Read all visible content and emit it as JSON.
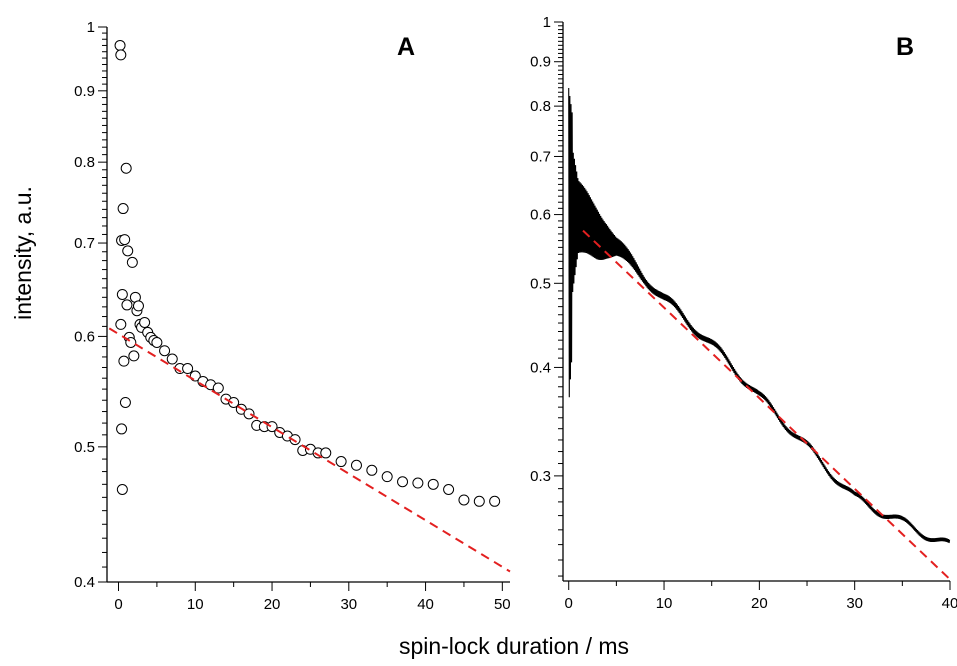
{
  "figure": {
    "xlabel": "spin-lock duration / ms",
    "ylabel": "intensity, a.u."
  },
  "chart_data": [
    {
      "panel": "A",
      "type": "scatter",
      "scale_y": "log",
      "xlim": [
        -1.5,
        51
      ],
      "ylim": [
        0.4,
        1.0
      ],
      "x_ticks": [
        0,
        10,
        20,
        30,
        40,
        50
      ],
      "y_ticks": [
        0.4,
        0.5,
        0.6,
        0.7,
        0.8,
        0.9,
        1
      ],
      "y_tick_labels": [
        "0.4",
        "0.5",
        "0.6",
        "0.7",
        "0.8",
        "0.9",
        "1"
      ],
      "grid": false,
      "series": [
        {
          "kind": "markers",
          "marker": "open-circle",
          "color": "#000000",
          "x": [
            0.2,
            0.3,
            0.3,
            0.4,
            0.4,
            0.5,
            0.5,
            0.6,
            0.7,
            0.8,
            0.9,
            1.0,
            1.1,
            1.2,
            1.4,
            1.6,
            1.8,
            2.0,
            2.2,
            2.4,
            2.6,
            2.8,
            3.0,
            3.4,
            3.8,
            4.2,
            4.6,
            5.0,
            6.0,
            7.0,
            8.0,
            9.0,
            10.0,
            11.0,
            12.0,
            13.0,
            14.0,
            15.0,
            16.0,
            17.0,
            18.0,
            19.0,
            20.0,
            21.0,
            22.0,
            23.0,
            24.0,
            25.0,
            26.0,
            27.0,
            29.0,
            31.0,
            33.0,
            35.0,
            37.0,
            39.0,
            41.0,
            43.0,
            45.0,
            47.0,
            49.0
          ],
          "y": [
            0.97,
            0.955,
            0.612,
            0.703,
            0.515,
            0.643,
            0.466,
            0.741,
            0.576,
            0.704,
            0.538,
            0.792,
            0.632,
            0.691,
            0.599,
            0.594,
            0.678,
            0.581,
            0.64,
            0.626,
            0.631,
            0.612,
            0.609,
            0.614,
            0.604,
            0.599,
            0.596,
            0.594,
            0.586,
            0.578,
            0.569,
            0.569,
            0.562,
            0.557,
            0.554,
            0.551,
            0.541,
            0.538,
            0.532,
            0.528,
            0.518,
            0.517,
            0.517,
            0.512,
            0.509,
            0.506,
            0.497,
            0.498,
            0.495,
            0.495,
            0.488,
            0.485,
            0.481,
            0.476,
            0.472,
            0.471,
            0.47,
            0.466,
            0.458,
            0.457,
            0.457
          ]
        },
        {
          "kind": "fit",
          "style": "dashed",
          "color": "#e32020",
          "x": [
            -1.2,
            51
          ],
          "y": [
            0.608,
            0.407
          ]
        }
      ]
    },
    {
      "panel": "B",
      "type": "line",
      "scale_y": "log",
      "xlim": [
        -0.6,
        40
      ],
      "ylim": [
        0.227,
        1.0
      ],
      "x_ticks": [
        0,
        10,
        20,
        30,
        40
      ],
      "y_ticks": [
        0.3,
        0.4,
        0.5,
        0.6,
        0.7,
        0.8,
        0.9,
        1
      ],
      "y_tick_labels": [
        "0.3",
        "0.4",
        "0.5",
        "0.6",
        "0.7",
        "0.8",
        "0.9",
        "1"
      ],
      "grid": false,
      "series": [
        {
          "kind": "signal",
          "color": "#000000",
          "decay_x": [
            0,
            2,
            4,
            6,
            10,
            20,
            26,
            30,
            35,
            40
          ],
          "decay_y": [
            0.6,
            0.585,
            0.565,
            0.535,
            0.48,
            0.37,
            0.315,
            0.283,
            0.265,
            0.249
          ],
          "oscillation_envelope_x": [
            0,
            1,
            3,
            5,
            8,
            14,
            20,
            40
          ],
          "oscillation_envelope": [
            0.42,
            0.16,
            0.11,
            0.04,
            0.015,
            0.012,
            0.01,
            0.008
          ]
        },
        {
          "kind": "fit",
          "style": "dashed",
          "color": "#e32020",
          "x": [
            1.5,
            40
          ],
          "y": [
            0.575,
            0.228
          ]
        }
      ]
    }
  ]
}
